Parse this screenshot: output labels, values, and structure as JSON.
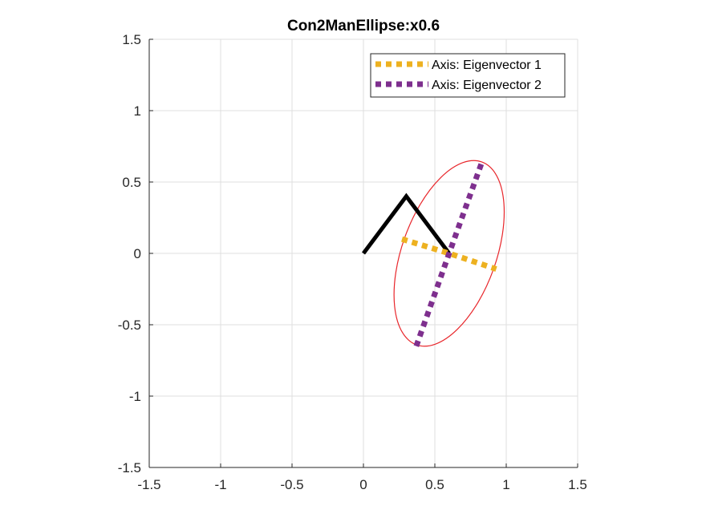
{
  "chart_data": {
    "type": "line",
    "title": "Con2ManEllipse:x0.6",
    "xlabel": "",
    "ylabel": "",
    "xlim": [
      -1.5,
      1.5
    ],
    "ylim": [
      -1.5,
      1.5
    ],
    "xticks": [
      "-1.5",
      "-1",
      "-0.5",
      "0",
      "0.5",
      "1",
      "1.5"
    ],
    "yticks": [
      "1.5",
      "1",
      "0.5",
      "0",
      "-0.5",
      "-1",
      "-1.5"
    ],
    "grid": true,
    "legend_position": "top-right",
    "manipulator": {
      "x": [
        0,
        0.3,
        0.6
      ],
      "y": [
        0,
        0.4,
        0
      ],
      "color": "#000000"
    },
    "ellipse": {
      "center": [
        0.6,
        0
      ],
      "semi_axes": [
        0.33,
        0.68
      ],
      "color": "#e8262b"
    },
    "series": [
      {
        "name": "Axis: Eigenvector 1",
        "x": [
          0.27,
          0.6,
          0.93
        ],
        "y": [
          0.1,
          0,
          -0.11
        ],
        "color": "#edb120"
      },
      {
        "name": "Axis: Eigenvector 2",
        "x": [
          0.37,
          0.6,
          0.83
        ],
        "y": [
          -0.65,
          0,
          0.64
        ],
        "color": "#7e2f8e"
      }
    ]
  }
}
